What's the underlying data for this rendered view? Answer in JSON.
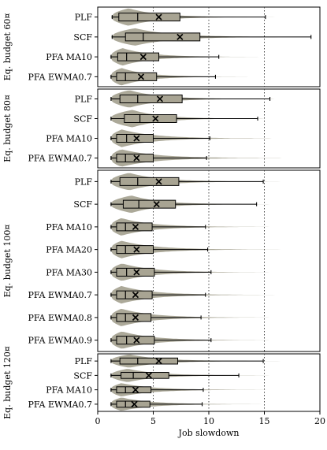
{
  "chart_data": {
    "type": "box-violin",
    "xlabel": "Job slowdown",
    "xlim": [
      0,
      20
    ],
    "xticks": [
      0,
      5,
      10,
      15,
      20
    ],
    "reference_lines": [
      5,
      10,
      15
    ],
    "colors": {
      "violin": "#a8a493",
      "box": "#a8a493",
      "line": "#000000",
      "ref_line": "#444444"
    },
    "panels": [
      {
        "label": "Eq. budget 60¤",
        "rows": [
          {
            "name": "PLF",
            "whisker_low": 1.3,
            "q1": 1.9,
            "median": 3.6,
            "q3": 7.4,
            "whisker_high": 15.1,
            "mean": 5.5,
            "max": 16.5
          },
          {
            "name": "SCF",
            "whisker_low": 1.3,
            "q1": 2.5,
            "median": 4.1,
            "q3": 9.2,
            "whisker_high": 19.2,
            "mean": 7.4,
            "max": 20.0
          },
          {
            "name": "PFA MA10",
            "whisker_low": 1.2,
            "q1": 1.8,
            "median": 2.6,
            "q3": 5.5,
            "whisker_high": 10.9,
            "mean": 4.1,
            "max": 15.0
          },
          {
            "name": "PFA EWMA0.7",
            "whisker_low": 1.2,
            "q1": 1.7,
            "median": 2.5,
            "q3": 5.3,
            "whisker_high": 10.6,
            "mean": 3.9,
            "max": 14.0
          }
        ]
      },
      {
        "label": "Eq. budget 80¤",
        "rows": [
          {
            "name": "PLF",
            "whisker_low": 1.2,
            "q1": 2.0,
            "median": 3.6,
            "q3": 7.6,
            "whisker_high": 15.5,
            "mean": 5.6,
            "max": 17.0
          },
          {
            "name": "SCF",
            "whisker_low": 1.2,
            "q1": 2.4,
            "median": 3.8,
            "q3": 7.1,
            "whisker_high": 14.4,
            "mean": 5.2,
            "max": 16.0
          },
          {
            "name": "PFA MA10",
            "whisker_low": 1.2,
            "q1": 1.7,
            "median": 2.6,
            "q3": 5.0,
            "whisker_high": 10.1,
            "mean": 3.5,
            "max": 17.0
          },
          {
            "name": "PFA EWMA0.7",
            "whisker_low": 1.2,
            "q1": 1.7,
            "median": 2.5,
            "q3": 5.0,
            "whisker_high": 9.8,
            "mean": 3.5,
            "max": 18.0
          }
        ]
      },
      {
        "label": "Eq. budget 100¤",
        "rows": [
          {
            "name": "PLF",
            "whisker_low": 1.2,
            "q1": 2.0,
            "median": 3.6,
            "q3": 7.3,
            "whisker_high": 14.9,
            "mean": 5.5,
            "max": 17.0
          },
          {
            "name": "SCF",
            "whisker_low": 1.2,
            "q1": 2.3,
            "median": 3.7,
            "q3": 7.0,
            "whisker_high": 14.3,
            "mean": 5.3,
            "max": 16.0
          },
          {
            "name": "PFA MA10",
            "whisker_low": 1.2,
            "q1": 1.7,
            "median": 2.5,
            "q3": 4.9,
            "whisker_high": 9.7,
            "mean": 3.4,
            "max": 16.0
          },
          {
            "name": "PFA MA20",
            "whisker_low": 1.2,
            "q1": 1.7,
            "median": 2.5,
            "q3": 5.0,
            "whisker_high": 9.9,
            "mean": 3.5,
            "max": 17.0
          },
          {
            "name": "PFA MA30",
            "whisker_low": 1.2,
            "q1": 1.7,
            "median": 2.6,
            "q3": 5.1,
            "whisker_high": 10.2,
            "mean": 3.5,
            "max": 16.0
          },
          {
            "name": "PFA EWMA0.7",
            "whisker_low": 1.2,
            "q1": 1.7,
            "median": 2.5,
            "q3": 4.9,
            "whisker_high": 9.7,
            "mean": 3.4,
            "max": 16.5
          },
          {
            "name": "PFA EWMA0.8",
            "whisker_low": 1.2,
            "q1": 1.7,
            "median": 2.5,
            "q3": 4.8,
            "whisker_high": 9.3,
            "mean": 3.4,
            "max": 16.0
          },
          {
            "name": "PFA EWMA0.9",
            "whisker_low": 1.2,
            "q1": 1.7,
            "median": 2.6,
            "q3": 5.1,
            "whisker_high": 10.2,
            "mean": 3.5,
            "max": 16.0
          }
        ]
      },
      {
        "label": "Eq. budget 120¤",
        "rows": [
          {
            "name": "PLF",
            "whisker_low": 1.2,
            "q1": 2.0,
            "median": 3.6,
            "q3": 7.2,
            "whisker_high": 14.9,
            "mean": 5.5,
            "max": 17.0
          },
          {
            "name": "SCF",
            "whisker_low": 1.2,
            "q1": 2.1,
            "median": 3.2,
            "q3": 6.4,
            "whisker_high": 12.7,
            "mean": 4.6,
            "max": 16.0
          },
          {
            "name": "PFA MA10",
            "whisker_low": 1.2,
            "q1": 1.7,
            "median": 2.5,
            "q3": 4.8,
            "whisker_high": 9.5,
            "mean": 3.4,
            "max": 16.0
          },
          {
            "name": "PFA EWMA0.7",
            "whisker_low": 1.2,
            "q1": 1.7,
            "median": 2.5,
            "q3": 4.7,
            "whisker_high": 9.4,
            "mean": 3.3,
            "max": 15.5
          }
        ]
      }
    ]
  }
}
